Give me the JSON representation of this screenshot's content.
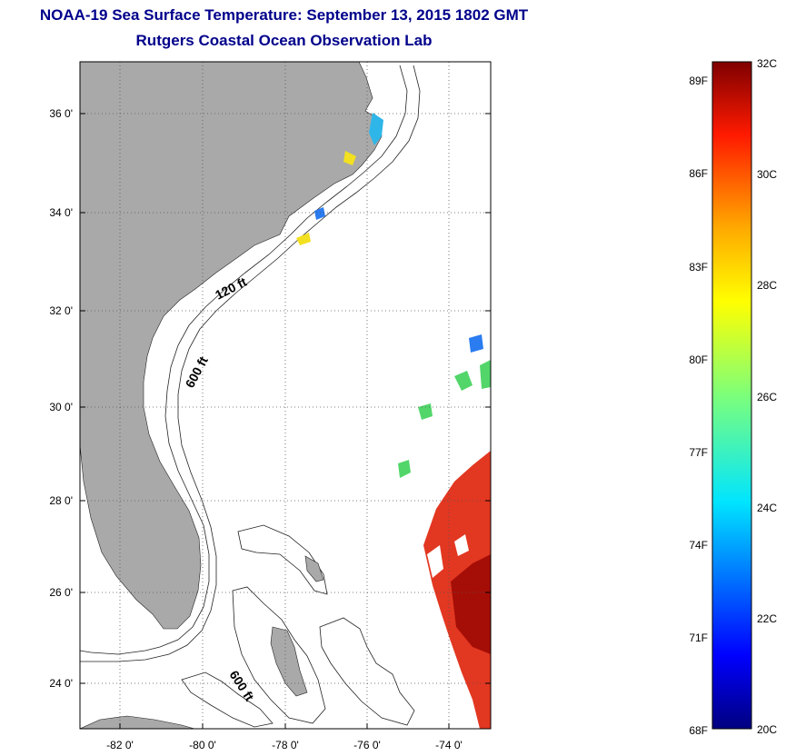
{
  "title": {
    "line1": "NOAA-19 Sea Surface Temperature:  September 13, 2015 1802 GMT",
    "line2": "Rutgers Coastal Ocean Observation Lab"
  },
  "map": {
    "lat_ticks": [
      "36 0'",
      "34 0'",
      "32 0'",
      "30 0'",
      "28 0'",
      "26 0'",
      "24 0'"
    ],
    "lon_ticks": [
      "-82 0'",
      "-80 0'",
      "-78 0'",
      "-76 0'",
      "-74 0'"
    ],
    "contour_labels": [
      "120 ft",
      "600 ft",
      "600 ft"
    ],
    "land_color": "#a9a9a9",
    "water_color": "#ffffff"
  },
  "colorbar": {
    "fahrenheit_labels": [
      "89F",
      "86F",
      "83F",
      "80F",
      "77F",
      "74F",
      "71F",
      "68F"
    ],
    "celsius_labels": [
      "32C",
      "30C",
      "28C",
      "26C",
      "24C",
      "22C",
      "20C"
    ],
    "min_c": 20,
    "max_c": 32,
    "colormap": "jet"
  }
}
